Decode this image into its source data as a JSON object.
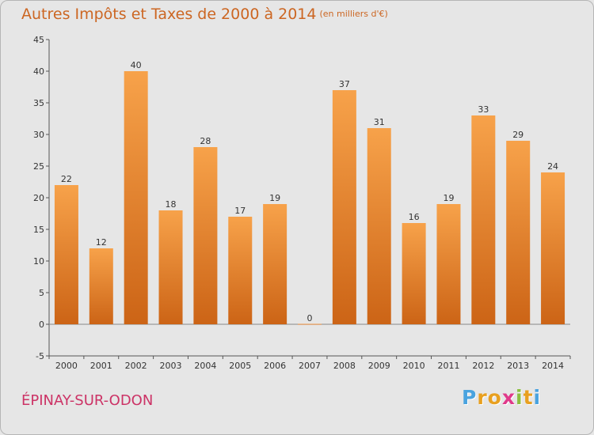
{
  "header": {
    "title": "Autres Impôts et Taxes de 2000 à 2014",
    "unit": "(en milliers d'€)"
  },
  "footer": {
    "commune": "ÉPINAY-SUR-ODON",
    "logo_letters": [
      "P",
      "r",
      "o",
      "x",
      "i",
      "t",
      "i"
    ]
  },
  "colors": {
    "bar_top": "#f7a24a",
    "bar_bottom": "#cc6416",
    "title": "#cc6622",
    "commune": "#cc3366",
    "logo": [
      "#4aa3df",
      "#e8a020",
      "#e8a020",
      "#e03a8a",
      "#8cc040",
      "#e8a020",
      "#4aa3df"
    ]
  },
  "chart_data": {
    "type": "bar",
    "title": "Autres Impôts et Taxes de 2000 à 2014",
    "subtitle": "(en milliers d'€)",
    "xlabel": "",
    "ylabel": "",
    "categories": [
      "2000",
      "2001",
      "2002",
      "2003",
      "2004",
      "2005",
      "2006",
      "2007",
      "2008",
      "2009",
      "2010",
      "2011",
      "2012",
      "2013",
      "2014"
    ],
    "values": [
      22,
      12,
      40,
      18,
      28,
      17,
      19,
      0,
      37,
      31,
      16,
      19,
      33,
      29,
      24
    ],
    "ylim": [
      -5,
      45
    ],
    "yticks": [
      -5,
      0,
      5,
      10,
      15,
      20,
      25,
      30,
      35,
      40,
      45
    ],
    "grid": false
  }
}
